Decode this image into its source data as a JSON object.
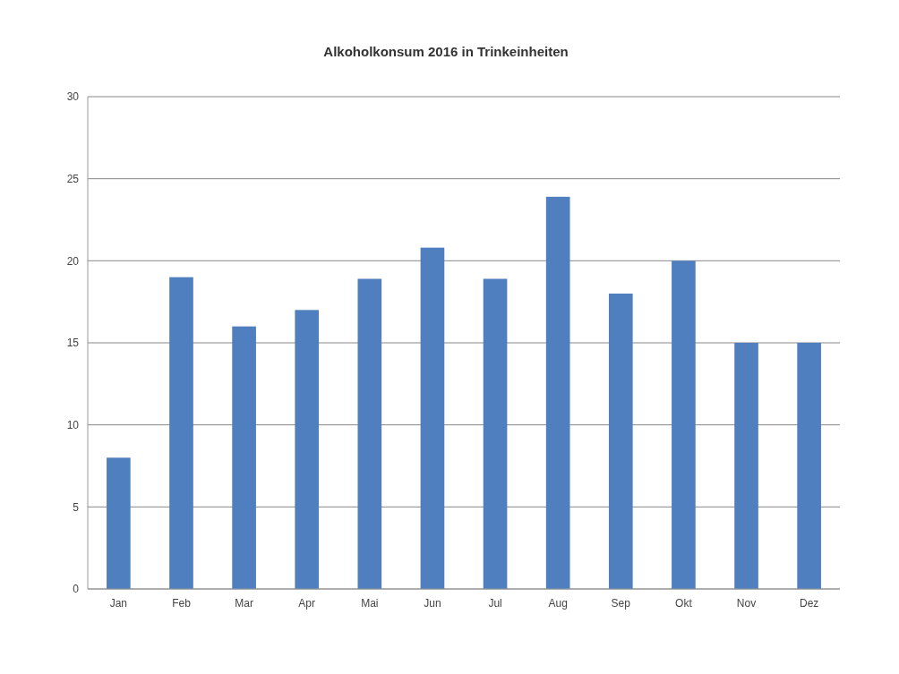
{
  "chart_data": {
    "type": "bar",
    "title": "Alkoholkonsum 2016 in Trinkeinheiten",
    "categories": [
      "Jan",
      "Feb",
      "Mar",
      "Apr",
      "Mai",
      "Jun",
      "Jul",
      "Aug",
      "Sep",
      "Okt",
      "Nov",
      "Dez"
    ],
    "values": [
      8,
      19,
      16,
      17,
      18.9,
      20.8,
      18.9,
      23.9,
      18,
      20,
      15,
      15
    ],
    "color": "#4f7fbf",
    "ylim": [
      0,
      30
    ],
    "yticks": [
      0,
      5,
      10,
      15,
      20,
      25,
      30
    ],
    "grid": "y"
  }
}
